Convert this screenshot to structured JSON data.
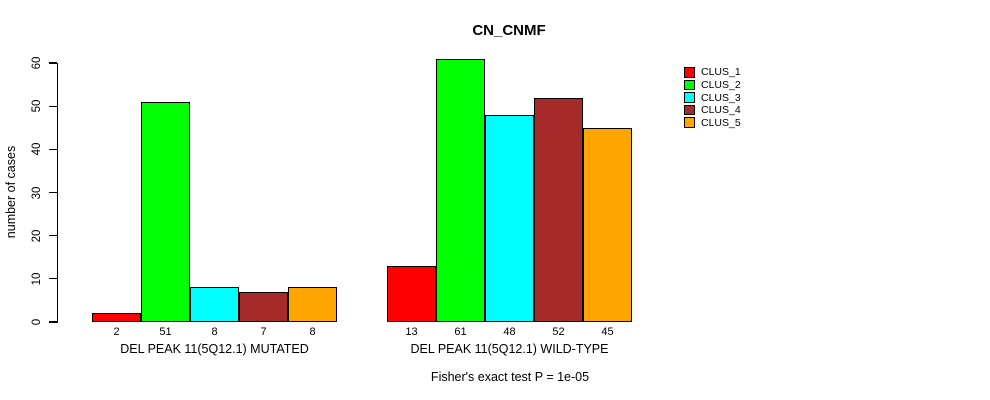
{
  "chart_data": {
    "type": "bar",
    "title": "CN_CNMF",
    "ylabel": "number of cases",
    "xlabel": "",
    "footer": "Fisher's exact test P = 1e-05",
    "ylim": [
      0,
      60
    ],
    "yticks": [
      0,
      10,
      20,
      30,
      40,
      50,
      60
    ],
    "grid": false,
    "legend_position": "right-outside",
    "background": "#FFFFFF",
    "categories": [
      "DEL PEAK 11(5Q12.1) MUTATED",
      "DEL PEAK 11(5Q12.1) WILD-TYPE"
    ],
    "series": [
      {
        "name": "CLUS_1",
        "color": "#FF0000",
        "values": [
          2,
          13
        ]
      },
      {
        "name": "CLUS_2",
        "color": "#00FF00",
        "values": [
          51,
          61
        ]
      },
      {
        "name": "CLUS_3",
        "color": "#00FFFF",
        "values": [
          8,
          48
        ]
      },
      {
        "name": "CLUS_4",
        "color": "#A52A2A",
        "values": [
          7,
          52
        ]
      },
      {
        "name": "CLUS_5",
        "color": "#FFA500",
        "values": [
          8,
          45
        ]
      }
    ],
    "bar_value_labels": [
      [
        2,
        51,
        8,
        7,
        8
      ],
      [
        13,
        61,
        48,
        52,
        45
      ]
    ]
  }
}
